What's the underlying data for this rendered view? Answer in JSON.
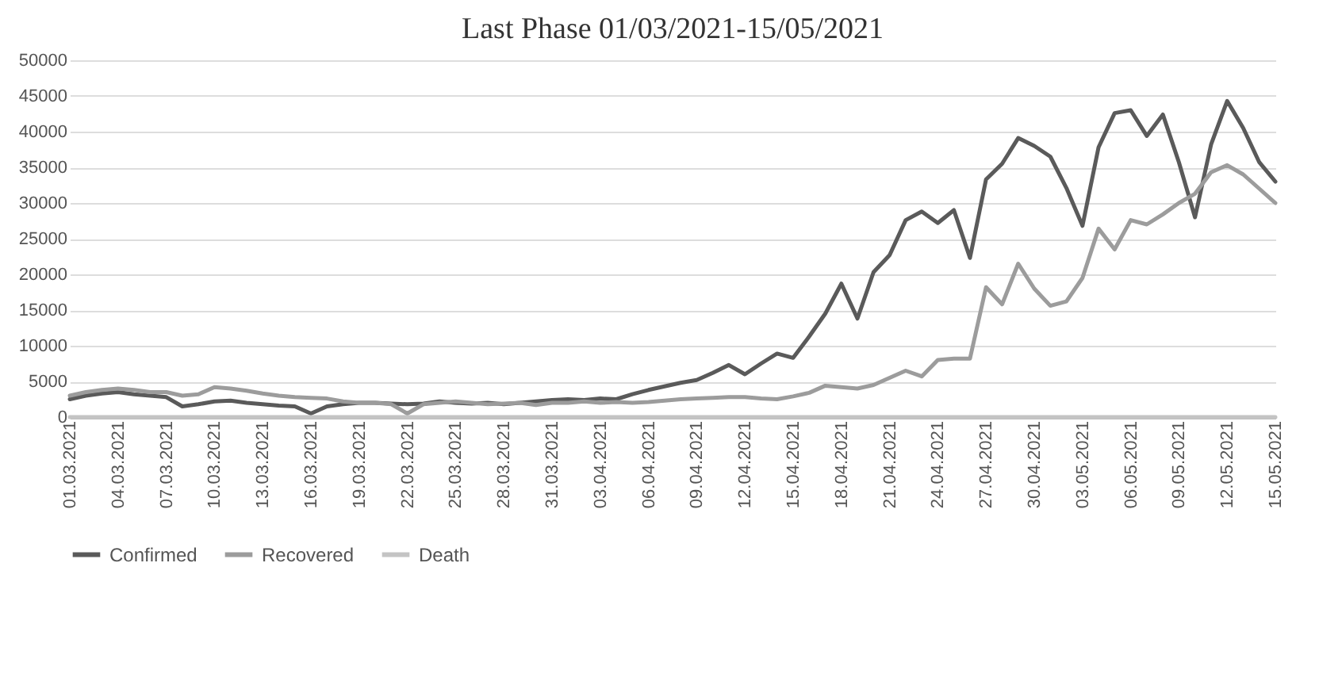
{
  "chart_data": {
    "type": "line",
    "title": "Last Phase 01/03/2021-15/05/2021",
    "categories": [
      "01.03.2021",
      null,
      null,
      "04.03.2021",
      null,
      null,
      "07.03.2021",
      null,
      null,
      "10.03.2021",
      null,
      null,
      "13.03.2021",
      null,
      null,
      "16.03.2021",
      null,
      null,
      "19.03.2021",
      null,
      null,
      "22.03.2021",
      null,
      null,
      "25.03.2021",
      null,
      null,
      "28.03.2021",
      null,
      null,
      "31.03.2021",
      null,
      null,
      "03.04.2021",
      null,
      null,
      "06.04.2021",
      null,
      null,
      "09.04.2021",
      null,
      null,
      "12.04.2021",
      null,
      null,
      "15.04.2021",
      null,
      null,
      "18.04.2021",
      null,
      null,
      "21.04.2021",
      null,
      null,
      "24.04.2021",
      null,
      null,
      "27.04.2021",
      null,
      null,
      "30.04.2021",
      null,
      null,
      "03.05.2021",
      null,
      null,
      "06.05.2021",
      null,
      null,
      "09.05.2021",
      null,
      null,
      "12.05.2021",
      null,
      null,
      "15.05.2021"
    ],
    "series": [
      {
        "name": "Confirmed",
        "color": "#5a5a5a",
        "values": [
          2500,
          3000,
          3300,
          3500,
          3200,
          3000,
          2800,
          1500,
          1800,
          2200,
          2300,
          2000,
          1800,
          1600,
          1500,
          500,
          1500,
          1800,
          2000,
          2000,
          1900,
          1800,
          1900,
          2200,
          2000,
          1900,
          2000,
          1800,
          2000,
          2200,
          2400,
          2500,
          2400,
          2600,
          2500,
          3200,
          3800,
          4300,
          4800,
          5200,
          6200,
          7300,
          6000,
          7500,
          8900,
          8300,
          11300,
          14500,
          18700,
          13800,
          20300,
          22700,
          27600,
          28800,
          27200,
          29000,
          22300,
          33300,
          35500,
          39100,
          38000,
          36500,
          32100,
          26800,
          37800,
          42600,
          43000,
          39400,
          42400,
          35700,
          28000,
          38200,
          44300,
          40500,
          35700,
          33000
        ]
      },
      {
        "name": "Recovered",
        "color": "#9c9c9c",
        "values": [
          3000,
          3500,
          3800,
          4000,
          3800,
          3500,
          3500,
          3000,
          3200,
          4200,
          4000,
          3700,
          3300,
          3000,
          2800,
          2700,
          2600,
          2200,
          2000,
          2000,
          1800,
          500,
          1800,
          2000,
          2200,
          2000,
          1800,
          1900,
          2000,
          1700,
          2000,
          2000,
          2200,
          2000,
          2100,
          2000,
          2100,
          2300,
          2500,
          2600,
          2700,
          2800,
          2800,
          2600,
          2500,
          2900,
          3400,
          4400,
          4200,
          4000,
          4500,
          5500,
          6500,
          5700,
          8000,
          8200,
          8200,
          18200,
          15800,
          21500,
          18000,
          15600,
          16200,
          19500,
          26400,
          23500,
          27600,
          27000,
          28400,
          30000,
          31300,
          34300,
          35300,
          34000,
          32000,
          30000
        ]
      },
      {
        "name": "Death",
        "color": "#c4c4c4",
        "values": [
          0,
          0,
          0,
          0,
          0,
          0,
          0,
          0,
          0,
          0,
          0,
          0,
          0,
          0,
          0,
          0,
          0,
          0,
          0,
          0,
          0,
          0,
          0,
          0,
          0,
          0,
          0,
          0,
          0,
          0,
          0,
          0,
          0,
          0,
          0,
          0,
          0,
          0,
          0,
          0,
          0,
          0,
          0,
          0,
          0,
          0,
          0,
          0,
          0,
          0,
          0,
          0,
          0,
          0,
          0,
          0,
          0,
          0,
          0,
          0,
          0,
          0,
          0,
          0,
          0,
          0,
          0,
          0,
          0,
          0,
          0,
          0,
          0,
          0,
          0,
          0
        ]
      }
    ],
    "ylim": [
      0,
      50000
    ],
    "yticks": [
      0,
      5000,
      10000,
      15000,
      20000,
      25000,
      30000,
      35000,
      40000,
      45000,
      50000
    ],
    "grid": "y",
    "legend": "bottom"
  }
}
